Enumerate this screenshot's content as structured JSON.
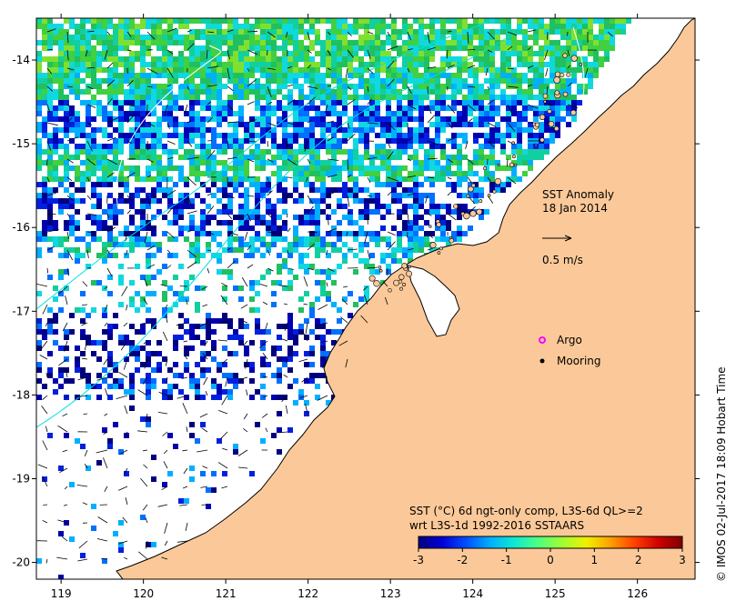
{
  "map": {
    "title_line1": "SST Anomaly",
    "title_line2": "18 Jan 2014",
    "vector_label": "0.5 m/s",
    "legend": [
      {
        "label": "Argo",
        "marker": "magenta-circle"
      },
      {
        "label": "Mooring",
        "marker": "black-dot"
      }
    ],
    "colorbar_title_line1": "SST (°C) 6d ngt-only comp, L3S-6d QL>=2",
    "colorbar_title_line2": "wrt L3S-1d 1992-2016 SSTAARS",
    "credit": "© IMOS 02-Jul-2017 18:09 Hobart Time",
    "colors": {
      "land": "#fbc999",
      "coast": "#000000",
      "ocean_nodata": "#ffffff",
      "contour": "#00e0e0"
    }
  },
  "chart_data": {
    "type": "heatmap",
    "x_ticks": [
      "119",
      "120",
      "121",
      "122",
      "123",
      "124",
      "125",
      "126"
    ],
    "y_ticks": [
      "-14",
      "-15",
      "-16",
      "-17",
      "-18",
      "-19",
      "-20"
    ],
    "xlim": [
      118.7,
      126.7
    ],
    "ylim": [
      -20.2,
      -13.5
    ],
    "colorbar_ticks": [
      "-3",
      "-2",
      "-1",
      "0",
      "1",
      "2",
      "3"
    ],
    "colorbar_range": [
      -3,
      3
    ],
    "colorbar_colors": [
      "#00007f",
      "#0000d8",
      "#0050ff",
      "#00b0ff",
      "#10e8d0",
      "#50ff80",
      "#a0ff30",
      "#f0f000",
      "#ffa000",
      "#ff4000",
      "#d00000",
      "#800000"
    ],
    "grid": false
  }
}
